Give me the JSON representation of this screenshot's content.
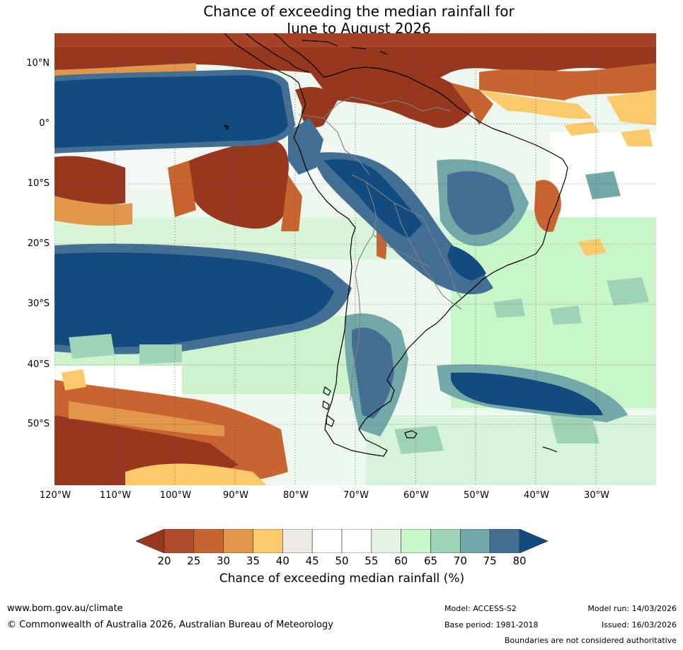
{
  "title": {
    "line1": "Chance of exceeding the median rainfall for",
    "line2": "June to August 2026"
  },
  "map": {
    "lat_labels": [
      "10°N",
      "0°",
      "10°S",
      "20°S",
      "30°S",
      "40°S",
      "50°S"
    ],
    "lon_labels": [
      "120°W",
      "110°W",
      "100°W",
      "90°W",
      "80°W",
      "70°W",
      "60°W",
      "50°W",
      "40°W",
      "30°W"
    ],
    "colors": {
      "ocean_base": "#e9f3e9",
      "dry_strong": "#96371e",
      "dry_mid": "#c8642f",
      "dry_light": "#e1964b",
      "dry_pale": "#fdca6b",
      "neutral": "#ffffff",
      "wet_pale": "#c9f6c9",
      "wet_light": "#9fd3b8",
      "wet_mid": "#72a8a8",
      "wet_strong": "#436f95",
      "wet_max": "#124b80",
      "coast": "#000000",
      "borders": "#808080"
    }
  },
  "colorbar": {
    "title": "Chance of exceeding median rainfall (%)",
    "ticks": [
      "20",
      "25",
      "30",
      "35",
      "40",
      "45",
      "50",
      "55",
      "60",
      "65",
      "70",
      "75",
      "80"
    ],
    "colors": [
      "#96371e",
      "#af4a2a",
      "#c8642f",
      "#e1964b",
      "#fdca6b",
      "#eeebe6",
      "#ffffff",
      "#ffffff",
      "#e6f4e6",
      "#c9f6c9",
      "#9fd3b8",
      "#72a8a8",
      "#436f95",
      "#124b80"
    ]
  },
  "footer": {
    "website": "www.bom.gov.au/climate",
    "copyright": "© Commonwealth of Australia 2026, Australian Bureau of Meteorology",
    "model": "Model: ACCESS-S2",
    "base_period": "Base period: 1981-2018",
    "model_run": "Model run: 14/03/2026",
    "issued": "Issued: 16/03/2026",
    "disclaimer": "Boundaries are not considered authoritative"
  }
}
